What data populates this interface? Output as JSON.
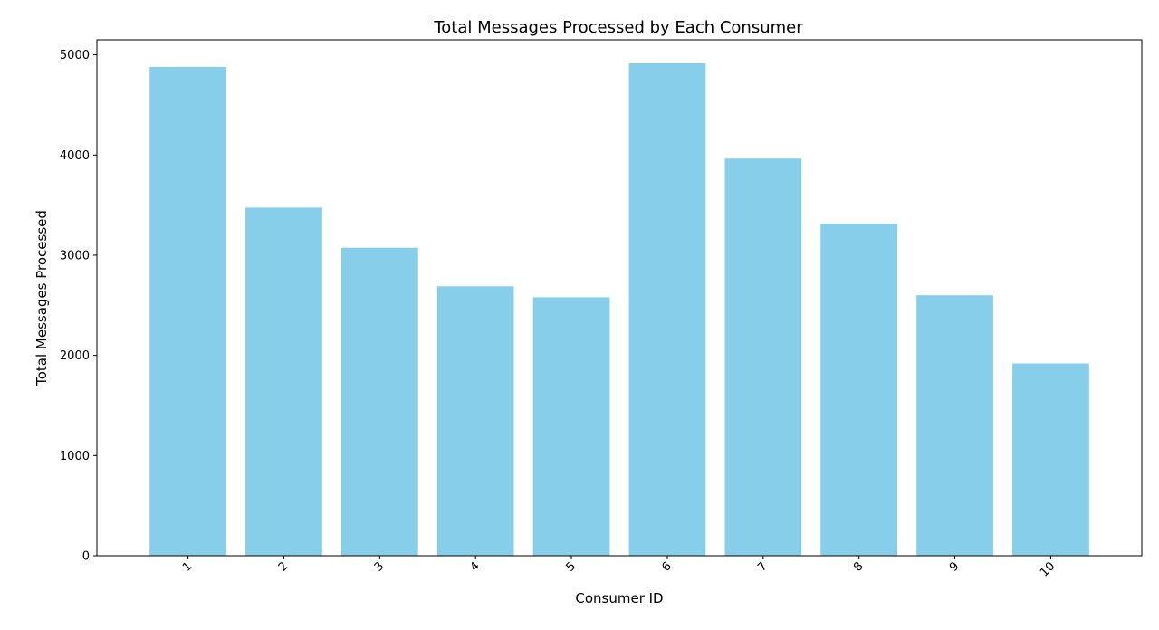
{
  "chart_data": {
    "type": "bar",
    "title": "Total Messages Processed by Each Consumer",
    "xlabel": "Consumer ID",
    "ylabel": "Total Messages Processed",
    "categories": [
      "1",
      "2",
      "3",
      "4",
      "5",
      "6",
      "7",
      "8",
      "9",
      "10"
    ],
    "values": [
      4880,
      3475,
      3075,
      2690,
      2580,
      4915,
      3965,
      3315,
      2600,
      1920
    ],
    "ylim": [
      0,
      5150
    ],
    "yticks": [
      0,
      1000,
      2000,
      3000,
      4000,
      5000
    ],
    "bar_color": "#87CEEB",
    "grid": false,
    "xtick_rotation": 45
  }
}
